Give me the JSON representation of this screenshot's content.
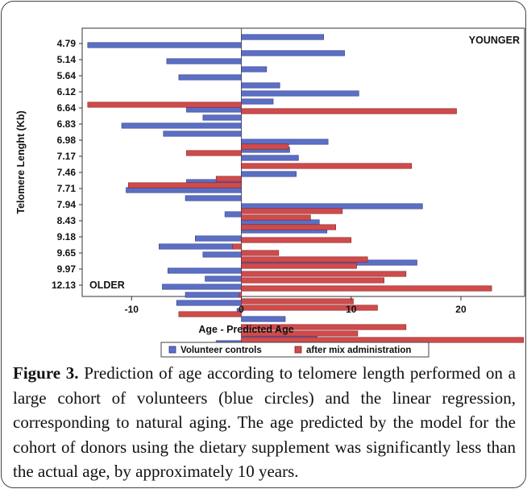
{
  "figure": {
    "caption_label": "Figure 3.",
    "caption_text": " Prediction of age according to telomere length performed on a large cohort of volunteers (blue circles) and the linear regression, corresponding to natural aging. The age predicted by the model for the cohort of donors using the dietary supplement was significantly less than the actual age, by approximately 10 years."
  },
  "colors": {
    "blue_fill": "#5b6fc4",
    "blue_edge": "#2c3a8a",
    "red_fill": "#d04b4b",
    "red_edge": "#8a1f1f"
  },
  "chart_data": {
    "type": "bar",
    "orientation": "horizontal",
    "xlabel": "Age - Predicted Age",
    "ylabel": "Telomere Lenght (Kb)",
    "xlim": [
      -14.5,
      25.8
    ],
    "xticks": [
      -10,
      0,
      10,
      20
    ],
    "ytick_labels": [
      "4.79",
      "5.14",
      "5.64",
      "6.12",
      "6.64",
      "6.83",
      "6.98",
      "7.17",
      "7.46",
      "7.71",
      "7.94",
      "8.43",
      "9.18",
      "9.65",
      "9.97",
      "12.13"
    ],
    "corner_labels": {
      "top_right": "YOUNGER",
      "bottom_left": "OLDER"
    },
    "legend_position": "bottom",
    "series": [
      {
        "name": "Volunteer controls",
        "color": "#5b6fc4",
        "values": [
          7.5,
          -14.0,
          9.4,
          -6.8,
          2.3,
          -5.7,
          3.5,
          10.7,
          2.9,
          -5.0,
          -3.5,
          -10.9,
          -7.1,
          7.9,
          4.4,
          5.2,
          1.3,
          5.0,
          -5.0,
          -10.5,
          -5.1,
          16.5,
          -1.5,
          7.1,
          7.8,
          -4.2,
          -7.5,
          -3.5,
          16.0,
          -6.7,
          -3.3,
          -7.2,
          -5.1,
          -5.9,
          -0.4,
          4.0,
          2.2,
          6.9,
          -2.3,
          1.9
        ],
        "positions": [
          0,
          0.5,
          1,
          1.5,
          2,
          2.5,
          3,
          3.5,
          4,
          4.5,
          5,
          5.5,
          6,
          6.5,
          7,
          7.5,
          8,
          8.5,
          9,
          9.5,
          10,
          10.5,
          11,
          11.5,
          12,
          12.5,
          13,
          13.5,
          14,
          14.5,
          15,
          15.5,
          16,
          16.5,
          17,
          17.5,
          18,
          18.5,
          19,
          19.5
        ]
      },
      {
        "name": "after mix administration",
        "color": "#d04b4b",
        "values": [
          -14.0,
          19.6,
          4.3,
          -5.0,
          15.5,
          -2.3,
          -10.3,
          9.2,
          6.3,
          8.6,
          10.0,
          -0.8,
          3.4,
          11.5,
          10.5,
          15.0,
          13.0,
          22.8,
          -0.2,
          10.2,
          12.4,
          -5.7,
          15.0,
          10.6,
          25.7,
          14.0
        ],
        "positions": [
          4.2,
          4.6,
          6.8,
          7.2,
          8.0,
          8.8,
          9.2,
          10.8,
          11.2,
          11.8,
          12.6,
          13.0,
          13.4,
          13.8,
          14.2,
          14.7,
          15.1,
          15.6,
          16.0,
          16.4,
          16.8,
          17.2,
          18.0,
          18.4,
          18.8,
          19.2
        ]
      }
    ]
  }
}
